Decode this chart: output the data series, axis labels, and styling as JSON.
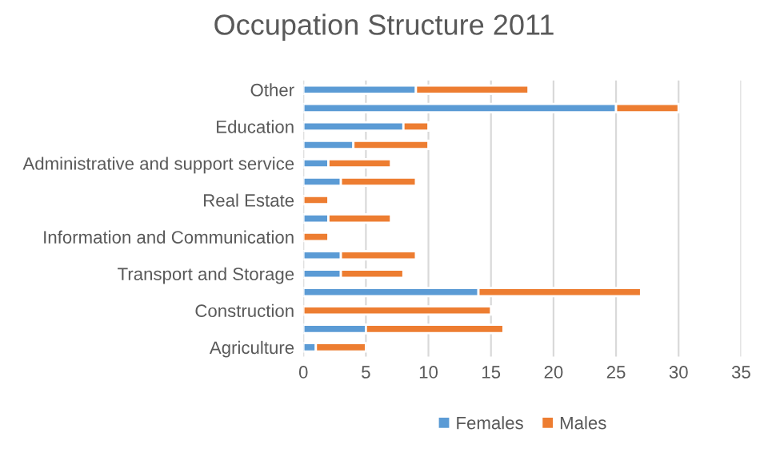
{
  "chart_data": {
    "type": "bar",
    "orientation": "horizontal",
    "stacked": true,
    "title": "Occupation Structure 2011",
    "categories": [
      "Other",
      null,
      "Education",
      null,
      "Administrative and support service",
      null,
      "Real Estate",
      null,
      "Information and Communication",
      null,
      "Transport and Storage",
      null,
      "Construction",
      null,
      "Agriculture"
    ],
    "series": [
      {
        "name": "Females",
        "color": "#5b9bd5",
        "values": [
          9,
          25,
          8,
          4,
          2,
          3,
          0,
          2,
          0,
          3,
          3,
          14,
          0,
          5,
          1
        ]
      },
      {
        "name": "Males",
        "color": "#ed7d31",
        "values": [
          9,
          5,
          2,
          6,
          5,
          6,
          2,
          5,
          2,
          6,
          5,
          13,
          15,
          11,
          4
        ]
      }
    ],
    "xlim": [
      0,
      35
    ],
    "xticks": [
      0,
      5,
      10,
      15,
      20,
      25,
      30,
      35
    ],
    "grid": "x",
    "legend": "bottom"
  }
}
